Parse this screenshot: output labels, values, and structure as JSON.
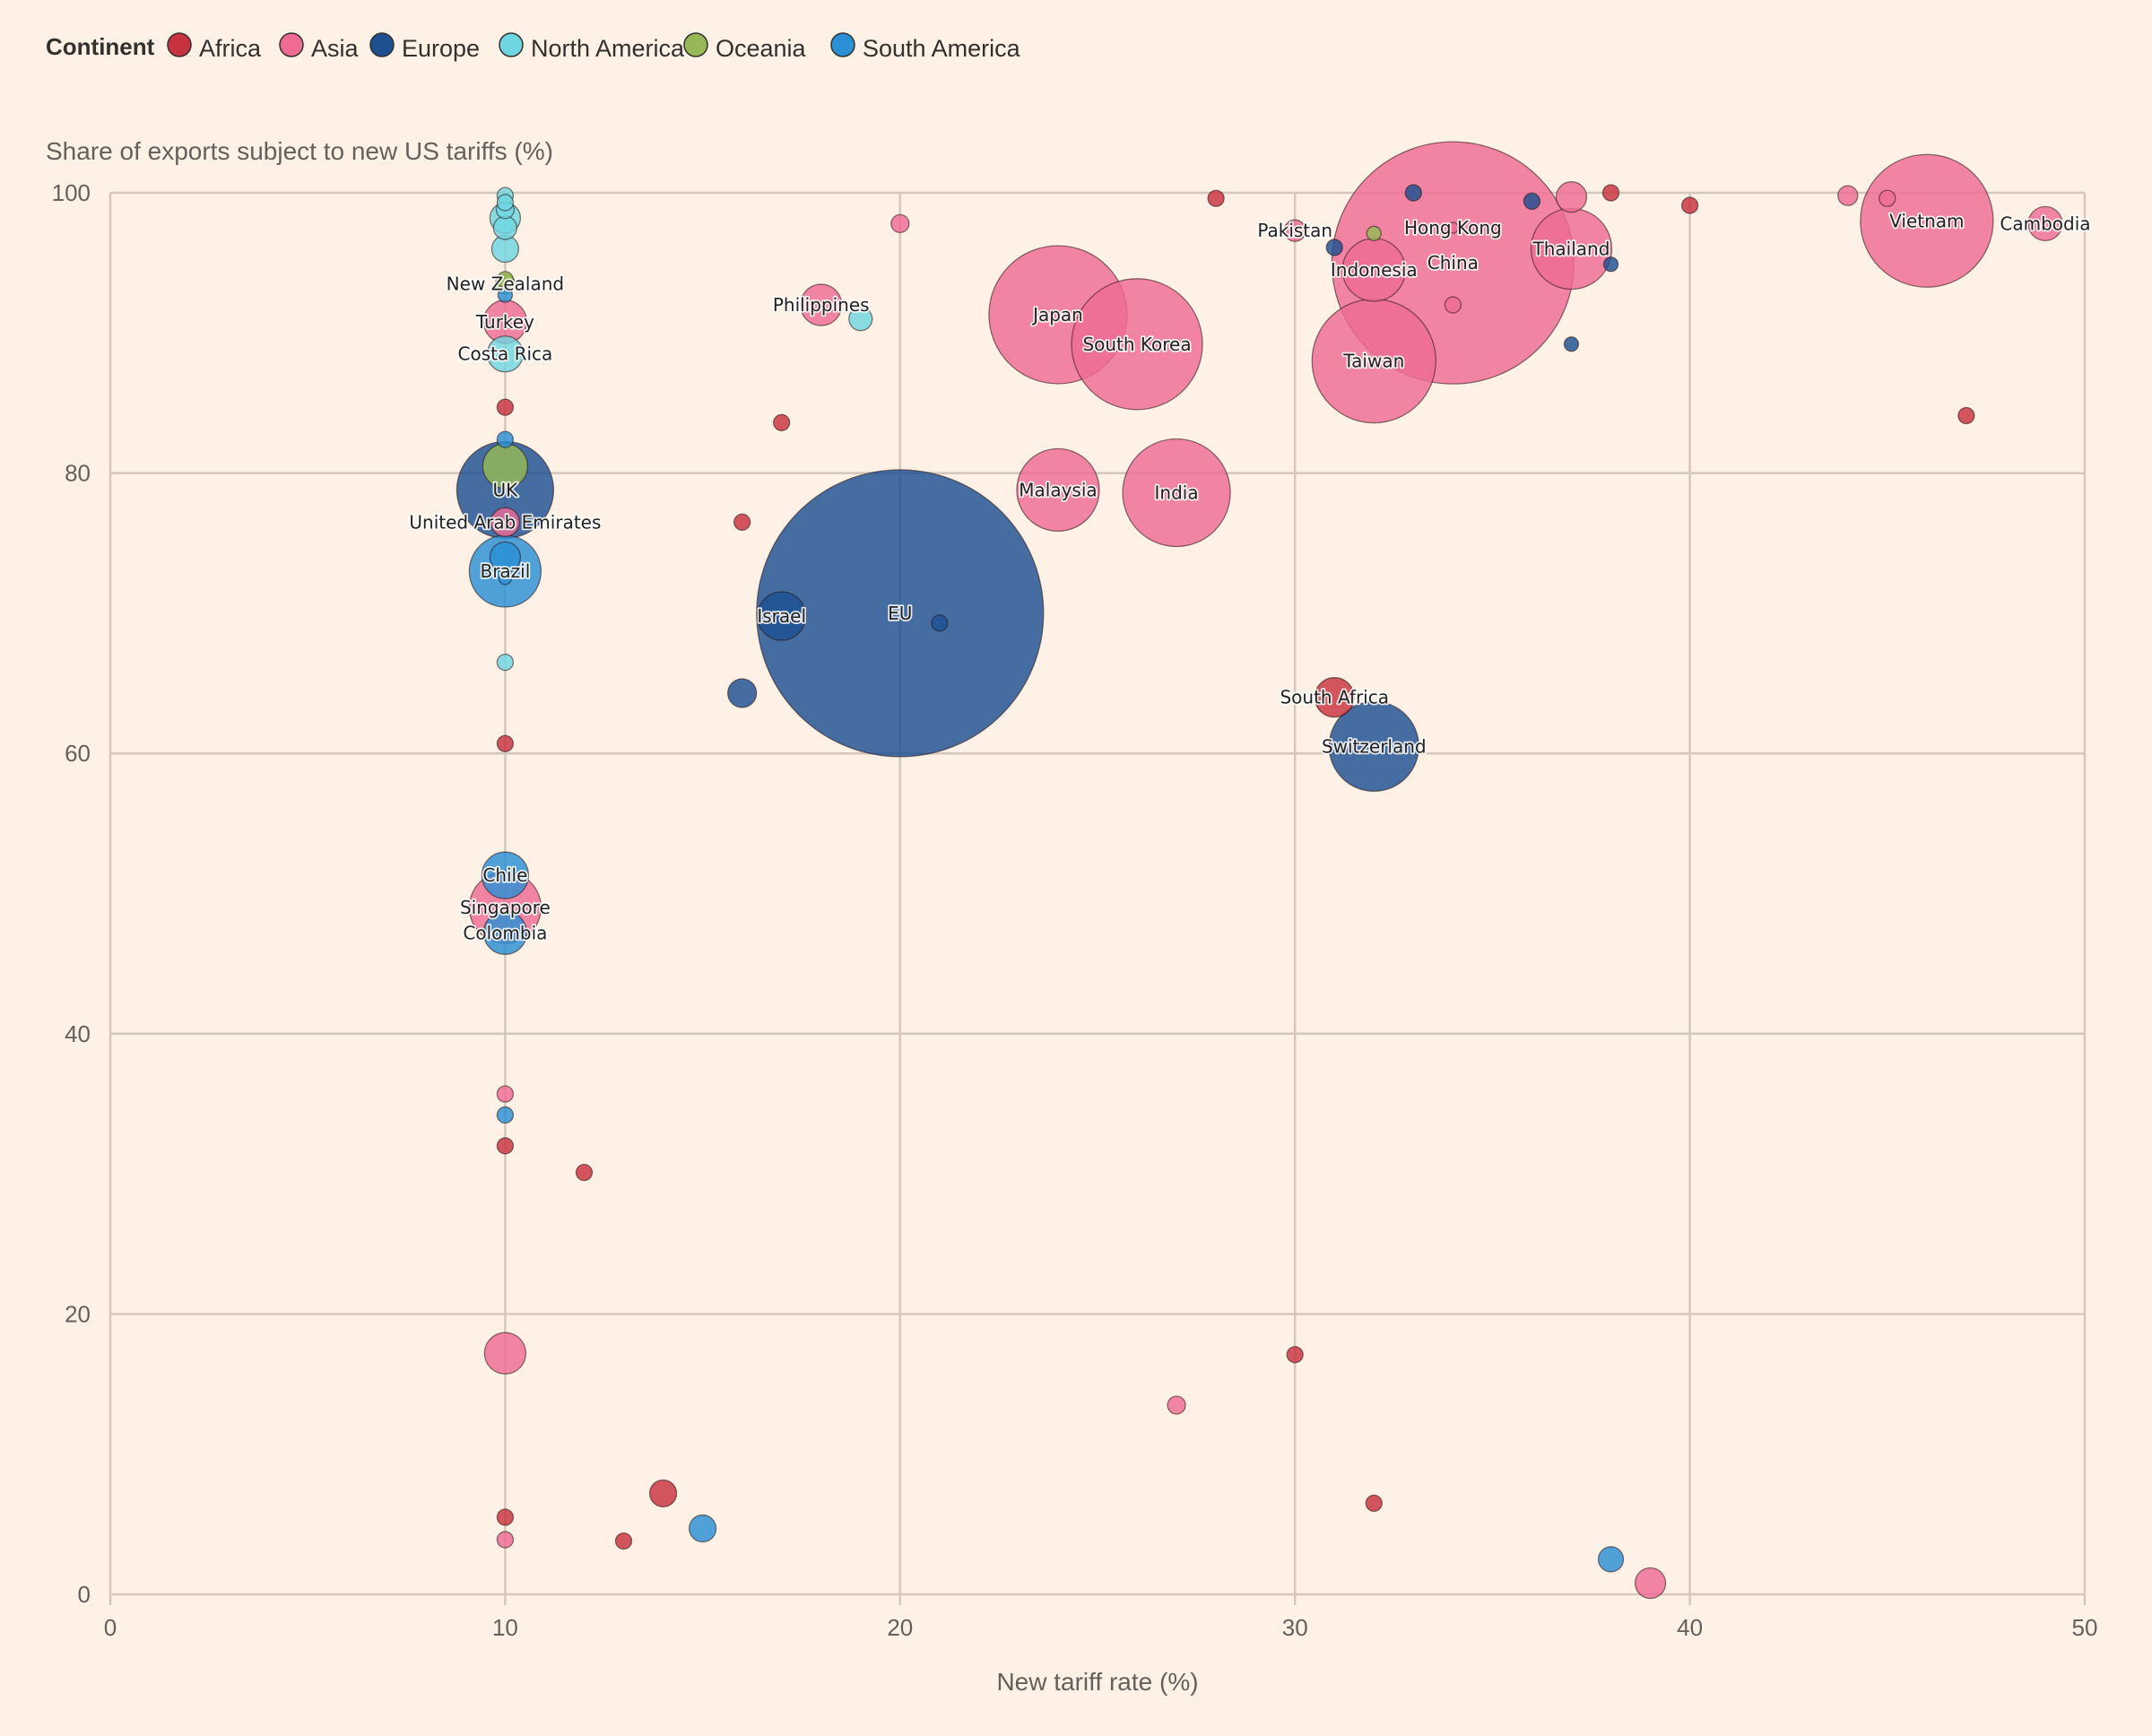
{
  "chart_data": {
    "type": "scatter",
    "title": "Share of exports subject to new US tariffs (%)",
    "xlabel": "New tariff rate (%)",
    "ylabel": "Share of exports subject to new US tariffs (%)",
    "xlim": [
      0,
      50
    ],
    "ylim": [
      0,
      100
    ],
    "xticks": [
      0,
      10,
      20,
      30,
      40,
      50
    ],
    "yticks": [
      0,
      20,
      40,
      60,
      80,
      100
    ],
    "grid": true,
    "legend": {
      "title": "Continent",
      "position": "top-left",
      "items": [
        {
          "name": "Africa",
          "color": "#c8323f"
        },
        {
          "name": "Asia",
          "color": "#ee6b94"
        },
        {
          "name": "Europe",
          "color": "#1d4f91"
        },
        {
          "name": "North America",
          "color": "#6fd5e0"
        },
        {
          "name": "Oceania",
          "color": "#96b856"
        },
        {
          "name": "South America",
          "color": "#2b8fd6"
        }
      ]
    },
    "size_note": "bubble area proportional to value of exports to US (relative units)",
    "points": [
      {
        "label": "EU",
        "continent": "Europe",
        "x": 20,
        "y": 70,
        "size": 160
      },
      {
        "label": "China",
        "continent": "Asia",
        "x": 34,
        "y": 95,
        "size": 135
      },
      {
        "label": "Hong Kong",
        "continent": "Asia",
        "x": 34,
        "y": 97.5,
        "size": 6
      },
      {
        "label": "Vietnam",
        "continent": "Asia",
        "x": 46,
        "y": 98,
        "size": 74
      },
      {
        "label": "Japan",
        "continent": "Asia",
        "x": 24,
        "y": 91.3,
        "size": 77
      },
      {
        "label": "South Korea",
        "continent": "Asia",
        "x": 26,
        "y": 89.2,
        "size": 73
      },
      {
        "label": "Taiwan",
        "continent": "Asia",
        "x": 32,
        "y": 88,
        "size": 69
      },
      {
        "label": "Thailand",
        "continent": "Asia",
        "x": 37,
        "y": 96,
        "size": 45
      },
      {
        "label": "India",
        "continent": "Asia",
        "x": 27,
        "y": 78.6,
        "size": 60
      },
      {
        "label": "Malaysia",
        "continent": "Asia",
        "x": 24,
        "y": 78.8,
        "size": 46
      },
      {
        "label": "Indonesia",
        "continent": "Asia",
        "x": 32,
        "y": 94.5,
        "size": 35
      },
      {
        "label": "UK",
        "continent": "Europe",
        "x": 10,
        "y": 78.8,
        "size": 54
      },
      {
        "label": "Switzerland",
        "continent": "Europe",
        "x": 32,
        "y": 60.5,
        "size": 50
      },
      {
        "label": "Brazil",
        "continent": "South America",
        "x": 10,
        "y": 73,
        "size": 40
      },
      {
        "label": "Singapore",
        "continent": "Asia",
        "x": 10,
        "y": 49,
        "size": 40
      },
      {
        "label": "Israel",
        "continent": "Europe",
        "x": 17,
        "y": 69.8,
        "size": 27
      },
      {
        "label": "Colombia",
        "continent": "South America",
        "x": 10,
        "y": 47.2,
        "size": 24
      },
      {
        "label": "Chile",
        "continent": "South America",
        "x": 10,
        "y": 51.3,
        "size": 26
      },
      {
        "label": "Costa Rica",
        "continent": "North America",
        "x": 10,
        "y": 88.5,
        "size": 20
      },
      {
        "label": "Turkey",
        "continent": "Asia",
        "x": 10,
        "y": 90.8,
        "size": 24
      },
      {
        "label": "South Africa",
        "continent": "Africa",
        "x": 31,
        "y": 64,
        "size": 22
      },
      {
        "label": "Cambodia",
        "continent": "Asia",
        "x": 49,
        "y": 97.8,
        "size": 19
      },
      {
        "label": "Philippines",
        "continent": "Asia",
        "x": 18,
        "y": 92,
        "size": 23
      },
      {
        "label": "Pakistan",
        "continent": "Asia",
        "x": 30,
        "y": 97.3,
        "size": 12
      },
      {
        "label": "New Zealand",
        "continent": "Oceania",
        "x": 10,
        "y": 93.5,
        "size": 11
      },
      {
        "label": "United Arab Emirates",
        "continent": "Asia",
        "x": 10,
        "y": 76.5,
        "size": 16
      },
      {
        "continent": "Oceania",
        "x": 10,
        "y": 80.5,
        "size": 25
      },
      {
        "continent": "South America",
        "x": 10,
        "y": 74,
        "size": 17
      },
      {
        "continent": "South America",
        "x": 10,
        "y": 72.5,
        "size": 7
      },
      {
        "continent": "North America",
        "x": 10,
        "y": 99.8,
        "size": 9
      },
      {
        "continent": "North America",
        "x": 10,
        "y": 99.3,
        "size": 9
      },
      {
        "continent": "North America",
        "x": 10,
        "y": 98.8,
        "size": 10
      },
      {
        "continent": "North America",
        "x": 10,
        "y": 98.2,
        "size": 17
      },
      {
        "continent": "North America",
        "x": 10,
        "y": 97.5,
        "size": 13
      },
      {
        "continent": "North America",
        "x": 10,
        "y": 96,
        "size": 15
      },
      {
        "continent": "Oceania",
        "x": 10,
        "y": 93.8,
        "size": 9
      },
      {
        "continent": "South America",
        "x": 10,
        "y": 92.7,
        "size": 8
      },
      {
        "continent": "Africa",
        "x": 10,
        "y": 84.7,
        "size": 9
      },
      {
        "continent": "South America",
        "x": 10,
        "y": 82.4,
        "size": 9
      },
      {
        "continent": "North America",
        "x": 10,
        "y": 66.5,
        "size": 9
      },
      {
        "continent": "Africa",
        "x": 10,
        "y": 60.7,
        "size": 9
      },
      {
        "continent": "Asia",
        "x": 10,
        "y": 35.7,
        "size": 9
      },
      {
        "continent": "South America",
        "x": 10,
        "y": 34.2,
        "size": 9
      },
      {
        "continent": "Africa",
        "x": 10,
        "y": 32,
        "size": 9
      },
      {
        "continent": "Asia",
        "x": 10,
        "y": 17.2,
        "size": 23
      },
      {
        "continent": "Africa",
        "x": 10,
        "y": 5.5,
        "size": 9
      },
      {
        "continent": "Asia",
        "x": 10,
        "y": 3.9,
        "size": 9
      },
      {
        "continent": "Africa",
        "x": 12,
        "y": 30.1,
        "size": 9
      },
      {
        "continent": "Africa",
        "x": 13,
        "y": 3.8,
        "size": 9
      },
      {
        "continent": "Africa",
        "x": 14,
        "y": 7.2,
        "size": 15
      },
      {
        "continent": "South America",
        "x": 15,
        "y": 4.7,
        "size": 15
      },
      {
        "continent": "Africa",
        "x": 16,
        "y": 76.5,
        "size": 9
      },
      {
        "continent": "Europe",
        "x": 16,
        "y": 64.3,
        "size": 16
      },
      {
        "continent": "Africa",
        "x": 17,
        "y": 83.6,
        "size": 9
      },
      {
        "continent": "North America",
        "x": 19,
        "y": 91,
        "size": 13
      },
      {
        "continent": "Asia",
        "x": 20,
        "y": 97.8,
        "size": 10
      },
      {
        "continent": "Europe",
        "x": 21,
        "y": 69.3,
        "size": 9
      },
      {
        "continent": "Asia",
        "x": 27,
        "y": 13.5,
        "size": 10
      },
      {
        "continent": "Africa",
        "x": 28,
        "y": 99.6,
        "size": 9
      },
      {
        "continent": "Africa",
        "x": 30,
        "y": 17.1,
        "size": 9
      },
      {
        "continent": "Europe",
        "x": 31,
        "y": 96.1,
        "size": 9
      },
      {
        "continent": "Oceania",
        "x": 32,
        "y": 97.1,
        "size": 8
      },
      {
        "continent": "Africa",
        "x": 32,
        "y": 6.5,
        "size": 9
      },
      {
        "continent": "Europe",
        "x": 33,
        "y": 100,
        "size": 9
      },
      {
        "continent": "Asia",
        "x": 34,
        "y": 92,
        "size": 9
      },
      {
        "continent": "Europe",
        "x": 36,
        "y": 99.4,
        "size": 9
      },
      {
        "continent": "Asia",
        "x": 37,
        "y": 99.7,
        "size": 17
      },
      {
        "continent": "Europe",
        "x": 37,
        "y": 89.2,
        "size": 8
      },
      {
        "continent": "Africa",
        "x": 38,
        "y": 100,
        "size": 9
      },
      {
        "continent": "Europe",
        "x": 38,
        "y": 94.9,
        "size": 8
      },
      {
        "continent": "South America",
        "x": 38,
        "y": 2.5,
        "size": 14
      },
      {
        "continent": "Asia",
        "x": 39,
        "y": 0.8,
        "size": 17
      },
      {
        "continent": "Africa",
        "x": 40,
        "y": 99.1,
        "size": 9
      },
      {
        "continent": "Asia",
        "x": 44,
        "y": 99.8,
        "size": 11
      },
      {
        "continent": "Asia",
        "x": 45,
        "y": 99.6,
        "size": 9
      },
      {
        "continent": "Africa",
        "x": 47,
        "y": 84.1,
        "size": 9
      }
    ]
  }
}
